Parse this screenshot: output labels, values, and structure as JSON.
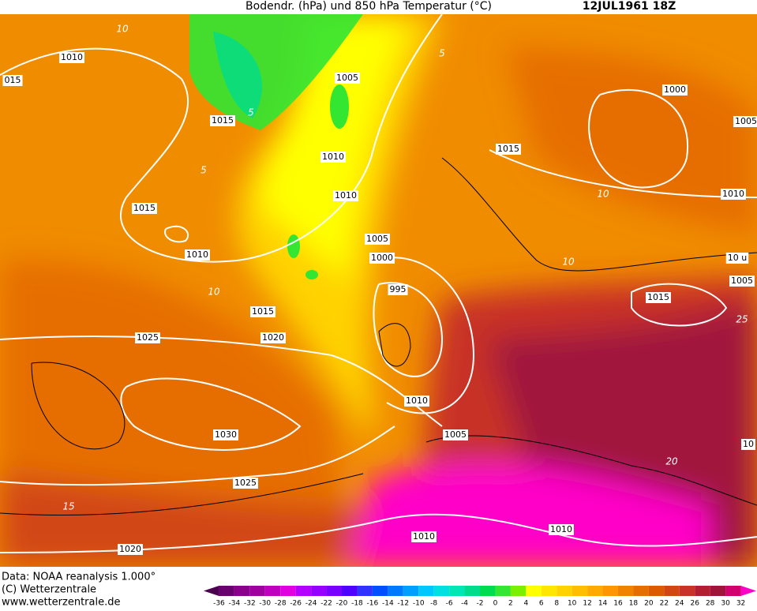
{
  "header": {
    "title": "Bodendr. (hPa) und 850 hPa Temperatur (°C)",
    "date": "12JUL1961 18Z"
  },
  "map": {
    "isobar_labels": [
      "1010",
      "015",
      "1005",
      "1015",
      "1000",
      "1005",
      "1010",
      "1015",
      "1010",
      "1010",
      "1015",
      "1010",
      "1005",
      "1000",
      "10 u",
      "1005",
      "995",
      "1015",
      "1015",
      "1025",
      "1020",
      "1010",
      "1005",
      "1030",
      "10",
      "1025",
      "1010",
      "1010",
      "1020"
    ],
    "isotherm_labels": [
      "10",
      "5",
      "5",
      "5",
      "10",
      "10",
      "10",
      "15",
      "20",
      "25"
    ]
  },
  "footer": {
    "lines": [
      "Data: NOAA reanalysis 1.000°",
      "(C) Wetterzentrale",
      "www.wetterzentrale.de"
    ]
  },
  "legend": {
    "ticks": [
      -36,
      -34,
      -32,
      -30,
      -28,
      -26,
      -24,
      -22,
      -20,
      -18,
      -16,
      -14,
      -12,
      -10,
      -8,
      -6,
      -4,
      -2,
      0,
      2,
      4,
      6,
      8,
      10,
      12,
      14,
      16,
      18,
      20,
      22,
      24,
      26,
      28,
      30,
      32
    ],
    "colors": [
      "#4b0050",
      "#6a0070",
      "#8b008b",
      "#a000a0",
      "#c000c0",
      "#e000e0",
      "#b400ff",
      "#9600ff",
      "#7800ff",
      "#5000ff",
      "#3232ff",
      "#0050ff",
      "#0078ff",
      "#00a0ff",
      "#00c8ff",
      "#00e0e0",
      "#00e6b4",
      "#00dc8c",
      "#00dc50",
      "#32e632",
      "#78f000",
      "#ffff00",
      "#ffe600",
      "#ffd200",
      "#ffbe00",
      "#ffaa00",
      "#ff9600",
      "#f08200",
      "#e66e00",
      "#dc5a00",
      "#d24614",
      "#c83228",
      "#b41e32",
      "#a0143c",
      "#d2006e",
      "#ff00c8"
    ]
  }
}
